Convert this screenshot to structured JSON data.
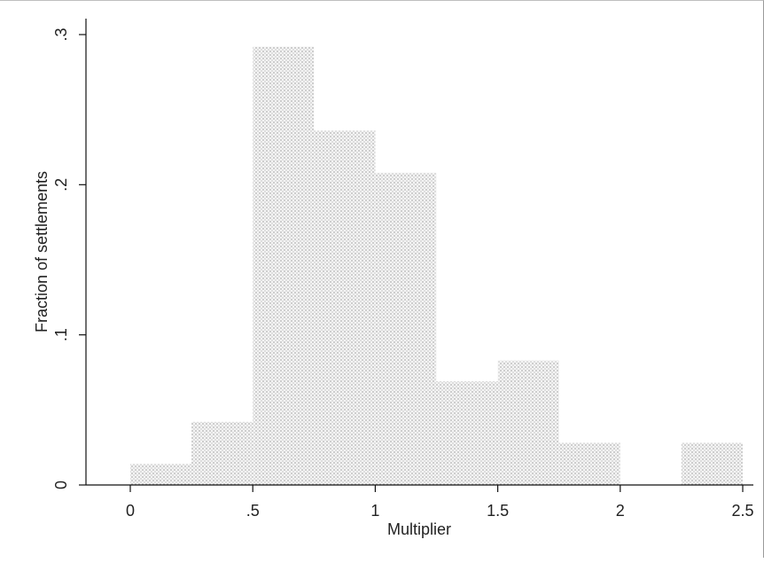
{
  "chart_data": {
    "type": "bar",
    "subtype": "histogram",
    "xlabel": "Multiplier",
    "ylabel": "Fraction of settlements",
    "xlim": [
      -0.17,
      2.56
    ],
    "ylim": [
      0,
      0.31
    ],
    "xticks": [
      0,
      0.5,
      1,
      1.5,
      2,
      2.5
    ],
    "xtick_labels": [
      "0",
      ".5",
      "1",
      "1.5",
      "2",
      "2.5"
    ],
    "yticks": [
      0,
      0.1,
      0.2,
      0.3
    ],
    "ytick_labels": [
      "0",
      ".1",
      ".2",
      ".3"
    ],
    "bin_width": 0.25,
    "bins": [
      {
        "start": 0.0,
        "end": 0.25,
        "value": 0.014
      },
      {
        "start": 0.25,
        "end": 0.5,
        "value": 0.042
      },
      {
        "start": 0.5,
        "end": 0.75,
        "value": 0.292
      },
      {
        "start": 0.75,
        "end": 1.0,
        "value": 0.236
      },
      {
        "start": 1.0,
        "end": 1.25,
        "value": 0.208
      },
      {
        "start": 1.25,
        "end": 1.5,
        "value": 0.069
      },
      {
        "start": 1.5,
        "end": 1.75,
        "value": 0.083
      },
      {
        "start": 1.75,
        "end": 2.0,
        "value": 0.028
      },
      {
        "start": 2.0,
        "end": 2.25,
        "value": 0.0
      },
      {
        "start": 2.25,
        "end": 2.5,
        "value": 0.028
      }
    ],
    "grid": false,
    "legend": "none",
    "bar_fill": "stippled-gray"
  }
}
